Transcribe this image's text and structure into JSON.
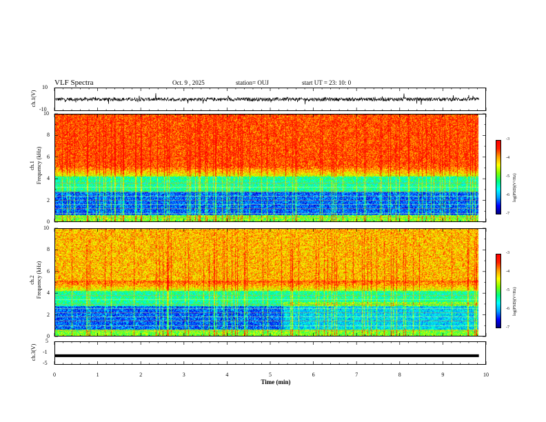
{
  "header": {
    "title": "VLF Spectra",
    "date": "Oct. 9 , 2025",
    "station": "station= OUJ",
    "start": "start  UT =   23: 10: 0"
  },
  "chart_data": [
    {
      "type": "line",
      "panel": "ch1-waveform",
      "ylabel": "ch.1(V)",
      "ylim": [
        -10,
        10
      ],
      "yticks": [
        "10",
        "-10"
      ],
      "xlim": [
        0,
        10
      ],
      "baseline": 0,
      "amplitude_range": [
        -2,
        2
      ],
      "color": "#000000"
    },
    {
      "type": "heatmap",
      "panel": "ch1-spectrogram",
      "ylabel": [
        "ch.1",
        "Frequency  (kHz)"
      ],
      "ylim": [
        0,
        10
      ],
      "yticks": [
        "0",
        "2",
        "4",
        "6",
        "8",
        "10"
      ],
      "xlim": [
        0,
        10
      ],
      "data_end_min": 9.85,
      "colorbar": {
        "label": "log(PSD)(V²/Hz)",
        "ticks": [
          "-3",
          "-4",
          "-5",
          "-6",
          "-7"
        ],
        "range": [
          -7,
          -3
        ]
      },
      "lines_khz": [
        0.4,
        0.8,
        1.2,
        1.6,
        2.0,
        2.4,
        2.8,
        3.2,
        3.6
      ]
    },
    {
      "type": "heatmap",
      "panel": "ch2-spectrogram",
      "ylabel": [
        "ch.2",
        "Frequency  (kHz)"
      ],
      "ylim": [
        0,
        10
      ],
      "yticks": [
        "0",
        "2",
        "4",
        "6",
        "8",
        "10"
      ],
      "xlim": [
        0,
        10
      ],
      "data_end_min": 9.85,
      "colorbar": {
        "label": "log(PSD)(V²/Hz)",
        "ticks": [
          "-3",
          "-4",
          "-5",
          "-6",
          "-7"
        ],
        "range": [
          -7,
          -3
        ]
      },
      "lines_khz": [
        0.5,
        1.0,
        1.4,
        1.8,
        2.2,
        2.6,
        3.0,
        3.4,
        3.8
      ]
    },
    {
      "type": "line",
      "panel": "ch3-waveform",
      "ylabel": "ch.3(V)",
      "ylim": [
        -5,
        5
      ],
      "yticks": [
        "5",
        "-1",
        "-5"
      ],
      "xlim": [
        0,
        10
      ],
      "constant_value": -1.2,
      "color": "#000000"
    }
  ],
  "xaxis": {
    "label": "Time  (min)",
    "ticks": [
      "0",
      "1",
      "2",
      "3",
      "4",
      "5",
      "6",
      "7",
      "8",
      "9",
      "10"
    ]
  },
  "colors": {
    "colormap": [
      "#000080",
      "#0000ff",
      "#00a0ff",
      "#00ffff",
      "#00ff80",
      "#80ff00",
      "#ffff00",
      "#ffa000",
      "#ff2000",
      "#ff0000"
    ]
  }
}
